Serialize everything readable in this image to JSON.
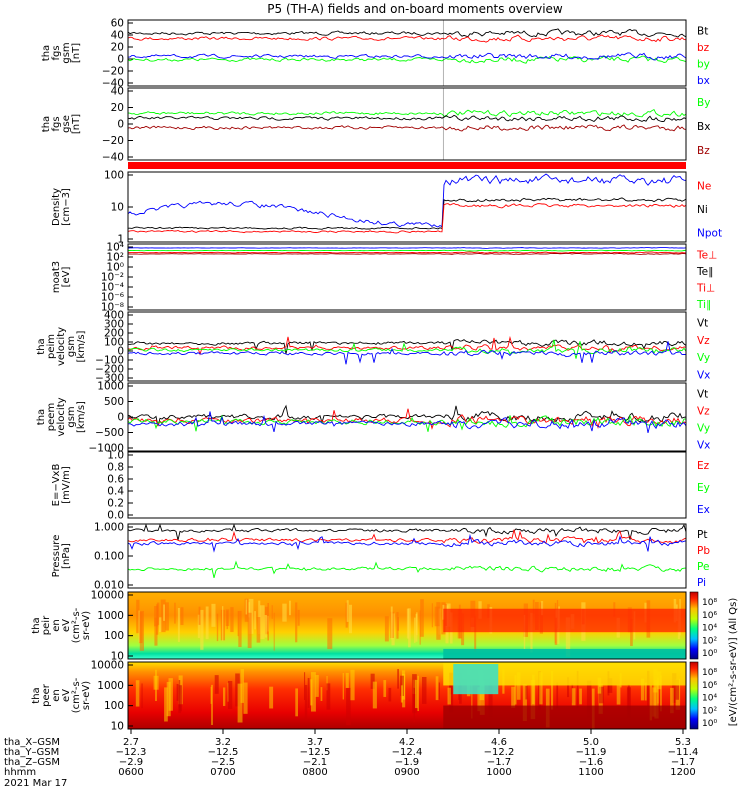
{
  "title": "P5 (TH-A) fields and on-board moments overview",
  "colors": {
    "black": "#000000",
    "red": "#ff0000",
    "green": "#00ff00",
    "blue": "#0000ff",
    "darkred": "#a00000"
  },
  "chart_data": {
    "type": "line",
    "time_ticks": [
      "0600",
      "0700",
      "0800",
      "0900",
      "1000",
      "1100",
      "1200"
    ],
    "ephemeris": [
      {
        "label": "tha_X–GSM",
        "values": [
          "2.7",
          "3.2",
          "3.7",
          "4.2",
          "4.6",
          "5.0",
          "5.3"
        ]
      },
      {
        "label": "tha_Y–GSM",
        "values": [
          "−12.3",
          "−12.5",
          "−12.5",
          "−12.4",
          "−12.2",
          "−11.9",
          "−11.4"
        ]
      },
      {
        "label": "tha_Z–GSM",
        "values": [
          "−2.9",
          "−2.5",
          "−2.1",
          "−1.9",
          "−1.7",
          "−1.6",
          "−1.7"
        ]
      },
      {
        "label": "hhmm",
        "values": []
      }
    ],
    "date_label": "2021 Mar 17",
    "panels": [
      {
        "ylabel": [
          "tha",
          "fgs",
          "gsm",
          "[nT]"
        ],
        "ticks": [
          "60",
          "40",
          "20",
          "0",
          "−20",
          "−40"
        ],
        "legend": [
          {
            "text": "Bt",
            "color": "#000000"
          },
          {
            "text": "bz",
            "color": "#ff0000"
          },
          {
            "text": "by",
            "color": "#00ff00"
          },
          {
            "text": "bx",
            "color": "#0000ff"
          }
        ]
      },
      {
        "ylabel": [
          "tha",
          "fgs",
          "gse",
          "[nT]"
        ],
        "ticks": [
          "40",
          "20",
          "0",
          "−20",
          "−40"
        ],
        "legend": [
          {
            "text": "By",
            "color": "#00ff00"
          },
          {
            "text": "Bx",
            "color": "#000000"
          },
          {
            "text": "Bz",
            "color": "#a00000"
          }
        ]
      },
      {
        "ylabel": [
          "Density",
          "[cm−3]"
        ],
        "ticks": [
          "100",
          "10",
          "1"
        ],
        "legend": [
          {
            "text": "Ne",
            "color": "#ff0000"
          },
          {
            "text": "Ni",
            "color": "#000000"
          },
          {
            "text": "Npot",
            "color": "#0000ff"
          }
        ]
      },
      {
        "ylabel": [
          "moat3",
          "[eV]"
        ],
        "ticks": [
          "10⁴",
          "10²",
          "10⁰",
          "10⁻²",
          "10⁻⁴",
          "10⁻⁶",
          "10⁻⁸"
        ],
        "legend": [
          {
            "text": "Te⊥",
            "color": "#ff0000"
          },
          {
            "text": "Te∥",
            "color": "#000000"
          },
          {
            "text": "Ti⊥",
            "color": "#ff0000"
          },
          {
            "text": "Ti∥",
            "color": "#00ff00"
          }
        ]
      },
      {
        "ylabel": [
          "tha",
          "peim",
          "velocity",
          "gsm",
          "[km/s]"
        ],
        "ticks": [
          "400",
          "300",
          "200",
          "100",
          "0",
          "−100",
          "−200",
          "−300"
        ],
        "legend": [
          {
            "text": "Vt",
            "color": "#000000"
          },
          {
            "text": "Vz",
            "color": "#ff0000"
          },
          {
            "text": "Vy",
            "color": "#00ff00"
          },
          {
            "text": "Vx",
            "color": "#0000ff"
          }
        ]
      },
      {
        "ylabel": [
          "tha",
          "peem",
          "velocity",
          "gsm",
          "[km/s]"
        ],
        "ticks": [
          "1000",
          "500",
          "0",
          "−500",
          "−1000"
        ],
        "legend": [
          {
            "text": "Vt",
            "color": "#000000"
          },
          {
            "text": "Vz",
            "color": "#ff0000"
          },
          {
            "text": "Vy",
            "color": "#00ff00"
          },
          {
            "text": "Vx",
            "color": "#0000ff"
          }
        ]
      },
      {
        "ylabel": [
          "E=−VxB",
          "[mV/m]"
        ],
        "ticks": [
          "1.0",
          "0.8",
          "0.6",
          "0.4",
          "0.2",
          "0.0"
        ],
        "legend": [
          {
            "text": "Ez",
            "color": "#ff0000"
          },
          {
            "text": "Ey",
            "color": "#00ff00"
          },
          {
            "text": "Ex",
            "color": "#0000ff"
          }
        ]
      },
      {
        "ylabel": [
          "Pressure",
          "[nPa]"
        ],
        "ticks": [
          "1.000",
          "0.100",
          "0.010"
        ],
        "legend": [
          {
            "text": "Pt",
            "color": "#000000"
          },
          {
            "text": "Pb",
            "color": "#ff0000"
          },
          {
            "text": "Pe",
            "color": "#00ff00"
          },
          {
            "text": "Pi",
            "color": "#0000ff"
          }
        ]
      },
      {
        "ylabel": [
          "tha",
          "peir",
          "en",
          "eV",
          "(cm²-s-",
          "sr-eV)"
        ],
        "ticks": [
          "10000",
          "1000",
          "100",
          "10"
        ]
      },
      {
        "ylabel": [
          "tha",
          "peer",
          "en",
          "eV",
          "(cm²-s-",
          "sr-eV)"
        ],
        "ticks": [
          "10000",
          "1000",
          "100",
          "10"
        ]
      }
    ],
    "colorbar": {
      "label": "[eV/(cm²-s-sr-eV)] (All Qs)",
      "ticks_upper": [
        "10⁸",
        "10⁶",
        "10⁴",
        "10²",
        "10⁰"
      ],
      "ticks_lower": [
        "10⁸",
        "10⁶",
        "10⁴",
        "10²",
        "10⁰"
      ]
    }
  }
}
